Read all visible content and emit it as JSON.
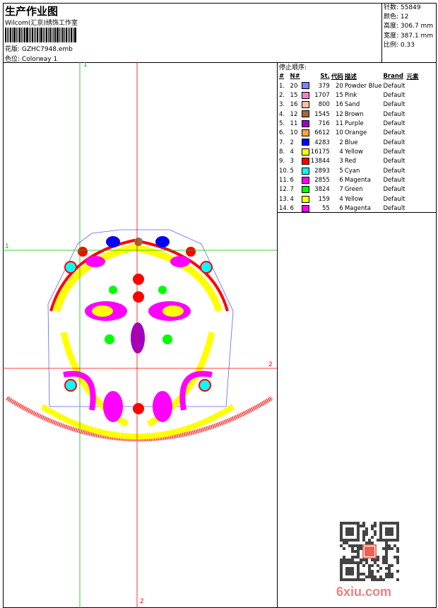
{
  "header": {
    "title": "生产作业图",
    "company": "Wilcom(汇京)绣饰工作室",
    "design_label": "花版:",
    "design_value": "GZHC7948.emb",
    "colorway_label": "色位:",
    "colorway_value": "Colorway 1"
  },
  "info": [
    {
      "label": "针数:",
      "value": "55849"
    },
    {
      "label": "颜色:",
      "value": "12"
    },
    {
      "label": "高度:",
      "value": "306.7 mm"
    },
    {
      "label": "宽度:",
      "value": "387.1 mm"
    },
    {
      "label": "比例:",
      "value": "0.33"
    }
  ],
  "axes": {
    "green_v": "1",
    "green_h": "1",
    "red_h": "2",
    "red_v": "2"
  },
  "stop_sequence": {
    "title": "停止顺序:",
    "headers": [
      "#",
      "N#",
      "",
      "St.",
      "代码",
      "描述",
      "Brand",
      "元素"
    ],
    "rows": [
      {
        "n": "1.",
        "needle": "20",
        "color": "#8080ff",
        "st": "379",
        "code": "20",
        "desc": "Powder Blue",
        "brand": "Default"
      },
      {
        "n": "2.",
        "needle": "15",
        "color": "#ff80c0",
        "st": "1707",
        "code": "15",
        "desc": "Pink",
        "brand": "Default"
      },
      {
        "n": "3.",
        "needle": "16",
        "color": "#ffc0a0",
        "st": "800",
        "code": "16",
        "desc": "Sand",
        "brand": "Default"
      },
      {
        "n": "4.",
        "needle": "12",
        "color": "#a06840",
        "st": "1545",
        "code": "12",
        "desc": "Brown",
        "brand": "Default"
      },
      {
        "n": "5.",
        "needle": "11",
        "color": "#a000c0",
        "st": "716",
        "code": "11",
        "desc": "Purple",
        "brand": "Default"
      },
      {
        "n": "6.",
        "needle": "10",
        "color": "#ffa040",
        "st": "6612",
        "code": "10",
        "desc": "Orange",
        "brand": "Default"
      },
      {
        "n": "7.",
        "needle": "2",
        "color": "#0000ff",
        "st": "4283",
        "code": "2",
        "desc": "Blue",
        "brand": "Default"
      },
      {
        "n": "8.",
        "needle": "4",
        "color": "#ffff00",
        "st": "16175",
        "code": "4",
        "desc": "Yellow",
        "brand": "Default"
      },
      {
        "n": "9.",
        "needle": "3",
        "color": "#ff0000",
        "st": "13844",
        "code": "3",
        "desc": "Red",
        "brand": "Default"
      },
      {
        "n": "10.",
        "needle": "5",
        "color": "#00ffff",
        "st": "2893",
        "code": "5",
        "desc": "Cyan",
        "brand": "Default"
      },
      {
        "n": "11.",
        "needle": "6",
        "color": "#ff00ff",
        "st": "2855",
        "code": "6",
        "desc": "Magenta",
        "brand": "Default"
      },
      {
        "n": "12.",
        "needle": "7",
        "color": "#00ff00",
        "st": "3824",
        "code": "7",
        "desc": "Green",
        "brand": "Default"
      },
      {
        "n": "13.",
        "needle": "4",
        "color": "#ffff00",
        "st": "159",
        "code": "4",
        "desc": "Yellow",
        "brand": "Default"
      },
      {
        "n": "14.",
        "needle": "6",
        "color": "#ff00ff",
        "st": "55",
        "code": "6",
        "desc": "Magenta",
        "brand": "Default"
      }
    ]
  },
  "watermark": "6xiu.com"
}
